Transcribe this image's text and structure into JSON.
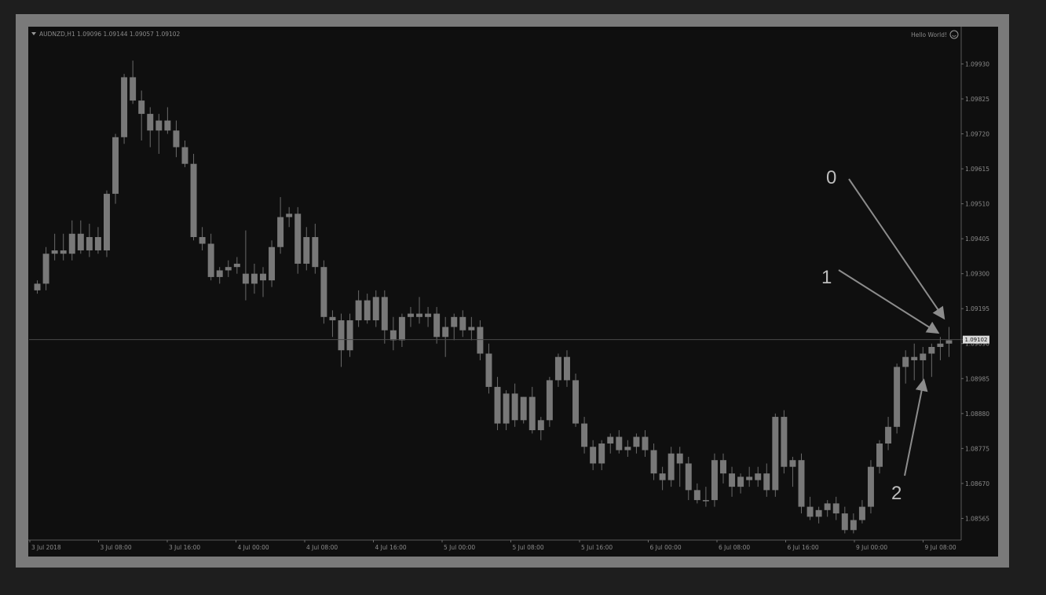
{
  "header": {
    "symbol_info": "AUDNZD,H1  1.09096 1.09144 1.09057 1.09102",
    "expert_label": "Hello World!",
    "expert_icon": "smiley-icon"
  },
  "annotations": [
    {
      "label": "0"
    },
    {
      "label": "1"
    },
    {
      "label": "2"
    }
  ],
  "colors": {
    "background": "#0f0f0f",
    "frame": "#7a7a7a",
    "candle": "#787878",
    "wick": "#6a6a6a",
    "text": "#8a8a8a",
    "price_line": "#4a4a4a",
    "arrow": "#8c8c8c"
  },
  "chart_data": {
    "type": "candlestick",
    "symbol": "AUDNZD",
    "timeframe": "H1",
    "last_price": "1.09102",
    "y_ticks": [
      "1.09930",
      "1.09825",
      "1.09720",
      "1.09615",
      "1.09510",
      "1.09405",
      "1.09300",
      "1.09195",
      "1.09090",
      "1.08985",
      "1.08880",
      "1.08775",
      "1.08670",
      "1.08565"
    ],
    "x_ticks": [
      "3 Jul 2018",
      "3 Jul 08:00",
      "3 Jul 16:00",
      "4 Jul 00:00",
      "4 Jul 08:00",
      "4 Jul 16:00",
      "5 Jul 00:00",
      "5 Jul 08:00",
      "5 Jul 16:00",
      "6 Jul 00:00",
      "6 Jul 08:00",
      "6 Jul 16:00",
      "9 Jul 00:00",
      "9 Jul 08:00"
    ],
    "ylim": [
      1.085,
      1.0999
    ],
    "candles_ohlc": [
      [
        1.0925,
        1.0928,
        1.0924,
        1.0927
      ],
      [
        1.0927,
        1.0938,
        1.0925,
        1.0936
      ],
      [
        1.0936,
        1.0942,
        1.0934,
        1.0937
      ],
      [
        1.0937,
        1.0942,
        1.0934,
        1.0936
      ],
      [
        1.0936,
        1.0946,
        1.0934,
        1.0942
      ],
      [
        1.0942,
        1.0946,
        1.0936,
        1.0937
      ],
      [
        1.0937,
        1.0945,
        1.0935,
        1.0941
      ],
      [
        1.0941,
        1.0944,
        1.0936,
        1.0937
      ],
      [
        1.0937,
        1.0955,
        1.0935,
        1.0954
      ],
      [
        1.0954,
        1.0972,
        1.0951,
        1.0971
      ],
      [
        1.0971,
        1.099,
        1.0969,
        1.0989
      ],
      [
        1.0989,
        1.0994,
        1.0981,
        1.0982
      ],
      [
        1.0982,
        1.0985,
        1.097,
        1.0978
      ],
      [
        1.0978,
        1.098,
        1.0968,
        1.0973
      ],
      [
        1.0973,
        1.0978,
        1.0966,
        1.0976
      ],
      [
        1.0976,
        1.098,
        1.0972,
        1.0973
      ],
      [
        1.0973,
        1.0976,
        1.0965,
        1.0968
      ],
      [
        1.0968,
        1.097,
        1.0962,
        1.0963
      ],
      [
        1.0963,
        1.0966,
        1.094,
        1.0941
      ],
      [
        1.0941,
        1.0944,
        1.0937,
        1.0939
      ],
      [
        1.0939,
        1.0942,
        1.0928,
        1.0929
      ],
      [
        1.0929,
        1.0932,
        1.0927,
        1.0931
      ],
      [
        1.0931,
        1.0934,
        1.0929,
        1.0932
      ],
      [
        1.0932,
        1.0935,
        1.093,
        1.0933
      ],
      [
        1.093,
        1.0943,
        1.0922,
        1.0927
      ],
      [
        1.0927,
        1.0933,
        1.0924,
        1.093
      ],
      [
        1.093,
        1.0932,
        1.0923,
        1.0928
      ],
      [
        1.0928,
        1.094,
        1.0926,
        1.0938
      ],
      [
        1.0938,
        1.0953,
        1.0936,
        1.0947
      ],
      [
        1.0947,
        1.095,
        1.0944,
        1.0948
      ],
      [
        1.0948,
        1.095,
        1.093,
        1.0933
      ],
      [
        1.0933,
        1.0944,
        1.0931,
        1.0941
      ],
      [
        1.0941,
        1.0945,
        1.093,
        1.0932
      ],
      [
        1.0932,
        1.0934,
        1.0915,
        1.0917
      ],
      [
        1.0917,
        1.0919,
        1.0911,
        1.0916
      ],
      [
        1.0916,
        1.0918,
        1.0902,
        1.0907
      ],
      [
        1.0907,
        1.0918,
        1.0905,
        1.0916
      ],
      [
        1.0916,
        1.0925,
        1.0914,
        1.0922
      ],
      [
        1.0922,
        1.0924,
        1.0915,
        1.0916
      ],
      [
        1.0916,
        1.0925,
        1.0914,
        1.0923
      ],
      [
        1.0923,
        1.0925,
        1.0909,
        1.0913
      ],
      [
        1.0913,
        1.0917,
        1.0907,
        1.091
      ],
      [
        1.091,
        1.0918,
        1.0908,
        1.0917
      ],
      [
        1.0917,
        1.092,
        1.0914,
        1.0918
      ],
      [
        1.0918,
        1.0923,
        1.0915,
        1.0917
      ],
      [
        1.0917,
        1.092,
        1.0914,
        1.0918
      ],
      [
        1.0918,
        1.092,
        1.0909,
        1.0911
      ],
      [
        1.0911,
        1.0917,
        1.0905,
        1.0914
      ],
      [
        1.0914,
        1.0918,
        1.091,
        1.0917
      ],
      [
        1.0917,
        1.0919,
        1.0911,
        1.0913
      ],
      [
        1.0913,
        1.0917,
        1.091,
        1.0914
      ],
      [
        1.0914,
        1.0916,
        1.0904,
        1.0906
      ],
      [
        1.0906,
        1.0909,
        1.0894,
        1.0896
      ],
      [
        1.0896,
        1.0899,
        1.0883,
        1.0885
      ],
      [
        1.0885,
        1.0895,
        1.0883,
        1.0894
      ],
      [
        1.0894,
        1.0897,
        1.0884,
        1.0886
      ],
      [
        1.0886,
        1.0893,
        1.0885,
        1.0893
      ],
      [
        1.0893,
        1.0896,
        1.0882,
        1.0883
      ],
      [
        1.0883,
        1.0887,
        1.088,
        1.0886
      ],
      [
        1.0886,
        1.0899,
        1.0884,
        1.0898
      ],
      [
        1.0898,
        1.0906,
        1.0896,
        1.0905
      ],
      [
        1.0905,
        1.0907,
        1.0896,
        1.0898
      ],
      [
        1.0898,
        1.09,
        1.0884,
        1.0885
      ],
      [
        1.0885,
        1.0887,
        1.0876,
        1.0878
      ],
      [
        1.0878,
        1.088,
        1.0871,
        1.0873
      ],
      [
        1.0873,
        1.088,
        1.0871,
        1.0879
      ],
      [
        1.0879,
        1.0882,
        1.0876,
        1.0881
      ],
      [
        1.0881,
        1.0883,
        1.0876,
        1.0877
      ],
      [
        1.0877,
        1.088,
        1.0875,
        1.0878
      ],
      [
        1.0878,
        1.0882,
        1.0876,
        1.0881
      ],
      [
        1.0881,
        1.0883,
        1.0875,
        1.0877
      ],
      [
        1.0877,
        1.0879,
        1.0868,
        1.087
      ],
      [
        1.087,
        1.0872,
        1.0865,
        1.0868
      ],
      [
        1.0868,
        1.0878,
        1.0866,
        1.0876
      ],
      [
        1.0876,
        1.0878,
        1.0866,
        1.0873
      ],
      [
        1.0873,
        1.0875,
        1.0862,
        1.0865
      ],
      [
        1.0865,
        1.0867,
        1.0861,
        1.0862
      ],
      [
        1.0862,
        1.0866,
        1.086,
        1.0862
      ],
      [
        1.0862,
        1.0876,
        1.086,
        1.0874
      ],
      [
        1.0874,
        1.0876,
        1.0867,
        1.087
      ],
      [
        1.087,
        1.0872,
        1.0863,
        1.0866
      ],
      [
        1.0866,
        1.087,
        1.0864,
        1.0869
      ],
      [
        1.0869,
        1.0872,
        1.0866,
        1.0868
      ],
      [
        1.0868,
        1.0872,
        1.0866,
        1.087
      ],
      [
        1.087,
        1.0873,
        1.0863,
        1.0865
      ],
      [
        1.0865,
        1.0888,
        1.0863,
        1.0887
      ],
      [
        1.0887,
        1.0889,
        1.087,
        1.0872
      ],
      [
        1.0872,
        1.0875,
        1.0866,
        1.0874
      ],
      [
        1.0874,
        1.0876,
        1.0858,
        1.086
      ],
      [
        1.086,
        1.0863,
        1.0856,
        1.0857
      ],
      [
        1.0857,
        1.086,
        1.0855,
        1.0859
      ],
      [
        1.0859,
        1.0862,
        1.0857,
        1.0861
      ],
      [
        1.0861,
        1.0863,
        1.0856,
        1.0858
      ],
      [
        1.0858,
        1.086,
        1.0852,
        1.0853
      ],
      [
        1.0853,
        1.0858,
        1.0852,
        1.0856
      ],
      [
        1.0856,
        1.0862,
        1.0855,
        1.086
      ],
      [
        1.086,
        1.0874,
        1.0858,
        1.0872
      ],
      [
        1.0872,
        1.088,
        1.087,
        1.0879
      ],
      [
        1.0879,
        1.0887,
        1.0877,
        1.0884
      ],
      [
        1.0884,
        1.0903,
        1.0882,
        1.0902
      ],
      [
        1.0902,
        1.0907,
        1.0897,
        1.0905
      ],
      [
        1.0905,
        1.0909,
        1.0898,
        1.0904
      ],
      [
        1.0904,
        1.0908,
        1.0898,
        1.0906
      ],
      [
        1.0906,
        1.0909,
        1.0899,
        1.0908
      ],
      [
        1.0908,
        1.0911,
        1.0904,
        1.0909
      ],
      [
        1.0909,
        1.0914,
        1.0905,
        1.091
      ]
    ]
  }
}
